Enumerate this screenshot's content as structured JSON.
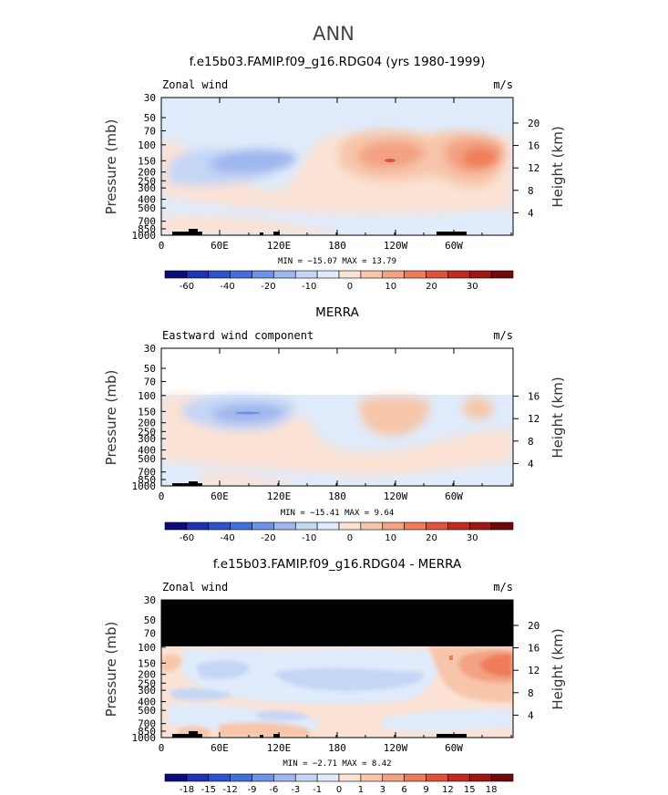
{
  "page_title": "ANN",
  "chart_data": [
    {
      "type": "heatmap",
      "title": "f.e15b03.FAMIP.f09_g16.RDG04 (yrs 1980-1999)",
      "variable_label": "Zonal wind",
      "units": "m/s",
      "ylabel": "Pressure (mb)",
      "ylabel_right": "Height (km)",
      "x_ticks": [
        "0",
        "60E",
        "120E",
        "180",
        "120W",
        "60W"
      ],
      "y_ticks": [
        "30",
        "50",
        "70",
        "100",
        "150",
        "200",
        "250",
        "300",
        "400",
        "500",
        "700",
        "850",
        "1000"
      ],
      "y_right_ticks": [
        "20",
        "16",
        "12",
        "8",
        "4"
      ],
      "stats": "MIN = −15.07   MAX =  13.79",
      "colorbar_labels": [
        "-60",
        "-40",
        "-20",
        "-10",
        "0",
        "10",
        "20",
        "30"
      ],
      "colormap": [
        "#0b0b7a",
        "#1e32b4",
        "#2c52cf",
        "#416fdc",
        "#6d92e6",
        "#9fb6ee",
        "#c5d6f5",
        "#e0ebfb",
        "#fbe2d4",
        "#f7c6aa",
        "#f3a283",
        "#ef7b59",
        "#e2513a",
        "#c52a20",
        "#9f1613",
        "#700909"
      ],
      "value_range": [
        -15.07,
        13.79
      ]
    },
    {
      "type": "heatmap",
      "title": "MERRA",
      "variable_label": "Eastward wind component",
      "units": "m/s",
      "ylabel": "Pressure (mb)",
      "ylabel_right": "Height (km)",
      "x_ticks": [
        "0",
        "60E",
        "120E",
        "180",
        "120W",
        "60W"
      ],
      "y_ticks": [
        "30",
        "50",
        "70",
        "100",
        "150",
        "200",
        "250",
        "300",
        "400",
        "500",
        "700",
        "850",
        "1000"
      ],
      "y_right_ticks": [
        "16",
        "12",
        "8",
        "4"
      ],
      "stats": "MIN = −15.41   MAX =   9.64",
      "colorbar_labels": [
        "-60",
        "-40",
        "-20",
        "-10",
        "0",
        "10",
        "20",
        "30"
      ],
      "value_range": [
        -15.41,
        9.64
      ]
    },
    {
      "type": "heatmap",
      "title": "f.e15b03.FAMIP.f09_g16.RDG04 - MERRA",
      "variable_label": "Zonal wind",
      "units": "m/s",
      "ylabel": "Pressure (mb)",
      "ylabel_right": "Height (km)",
      "x_ticks": [
        "0",
        "60E",
        "120E",
        "180",
        "120W",
        "60W"
      ],
      "y_ticks": [
        "30",
        "50",
        "70",
        "100",
        "150",
        "200",
        "250",
        "300",
        "400",
        "500",
        "700",
        "850",
        "1000"
      ],
      "y_right_ticks": [
        "20",
        "16",
        "12",
        "8",
        "4"
      ],
      "stats": "MIN =  −2.71   MAX =   8.42",
      "colorbar_labels": [
        "-18",
        "-15",
        "-12",
        "-9",
        "-6",
        "-3",
        "-1",
        "0",
        "1",
        "3",
        "6",
        "9",
        "12",
        "15",
        "18"
      ],
      "value_range": [
        -2.71,
        8.42
      ]
    }
  ]
}
